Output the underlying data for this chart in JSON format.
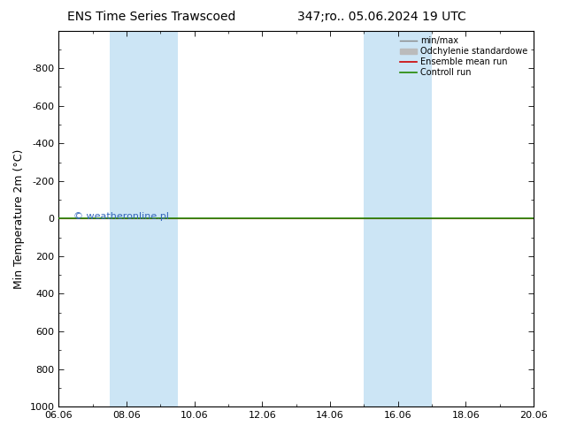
{
  "title_left": "ENS Time Series Trawscoed",
  "title_right": "347;ro.. 05.06.2024 19 UTC",
  "ylabel": "Min Temperature 2m (°C)",
  "xlim_dates": [
    "06.06",
    "08.06",
    "10.06",
    "12.06",
    "14.06",
    "16.06",
    "18.06",
    "20.06"
  ],
  "x_tick_positions": [
    0,
    2,
    4,
    6,
    8,
    10,
    12,
    14
  ],
  "ylim_top": -1000,
  "ylim_bottom": 1000,
  "yticks": [
    -800,
    -600,
    -400,
    -200,
    0,
    200,
    400,
    600,
    800,
    1000
  ],
  "shaded_regions": [
    [
      1.5,
      2.5
    ],
    [
      2.5,
      3.5
    ],
    [
      9.0,
      10.0
    ],
    [
      10.0,
      11.0
    ]
  ],
  "shaded_color": "#cce5f5",
  "control_run_y": 0,
  "watermark": "© weatheronline.pl",
  "watermark_color": "#3366bb",
  "legend_labels": [
    "min/max",
    "Odchylenie standardowe",
    "Ensemble mean run",
    "Controll run"
  ],
  "legend_colors": [
    "#888888",
    "#bbbbbb",
    "#cc0000",
    "#228800"
  ],
  "background_color": "#ffffff",
  "spine_color": "#000000",
  "title_fontsize": 10,
  "ylabel_fontsize": 9,
  "tick_labelsize": 8,
  "legend_fontsize": 7
}
